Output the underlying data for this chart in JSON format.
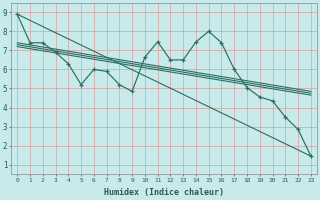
{
  "xlabel": "Humidex (Indice chaleur)",
  "bg_color": "#c8eaea",
  "grid_color": "#d4a0a0",
  "line_color": "#2a6e62",
  "xlim": [
    -0.5,
    23.5
  ],
  "ylim": [
    0.5,
    9.5
  ],
  "xticks": [
    0,
    1,
    2,
    3,
    4,
    5,
    6,
    7,
    8,
    9,
    10,
    11,
    12,
    13,
    14,
    15,
    16,
    17,
    18,
    19,
    20,
    21,
    22,
    23
  ],
  "yticks": [
    1,
    2,
    3,
    4,
    5,
    6,
    7,
    8,
    9
  ],
  "main_line_x": [
    0,
    1,
    2,
    3,
    4,
    5,
    6,
    7,
    8,
    9,
    10,
    11,
    12,
    13,
    14,
    15,
    16,
    17,
    18,
    19,
    20,
    21,
    22,
    23
  ],
  "main_line_y": [
    8.9,
    7.4,
    7.4,
    6.9,
    6.3,
    5.2,
    6.0,
    5.9,
    5.2,
    4.85,
    6.65,
    7.45,
    6.5,
    6.5,
    7.45,
    8.0,
    7.4,
    6.0,
    5.05,
    4.55,
    4.35,
    3.5,
    2.85,
    1.45
  ],
  "reg_line1": [
    [
      0,
      23
    ],
    [
      8.9,
      1.45
    ]
  ],
  "reg_line2": [
    [
      0,
      23
    ],
    [
      7.4,
      4.85
    ]
  ],
  "reg_line3": [
    [
      0,
      23
    ],
    [
      7.3,
      4.75
    ]
  ],
  "reg_line4": [
    [
      0,
      23
    ],
    [
      7.2,
      4.65
    ]
  ]
}
